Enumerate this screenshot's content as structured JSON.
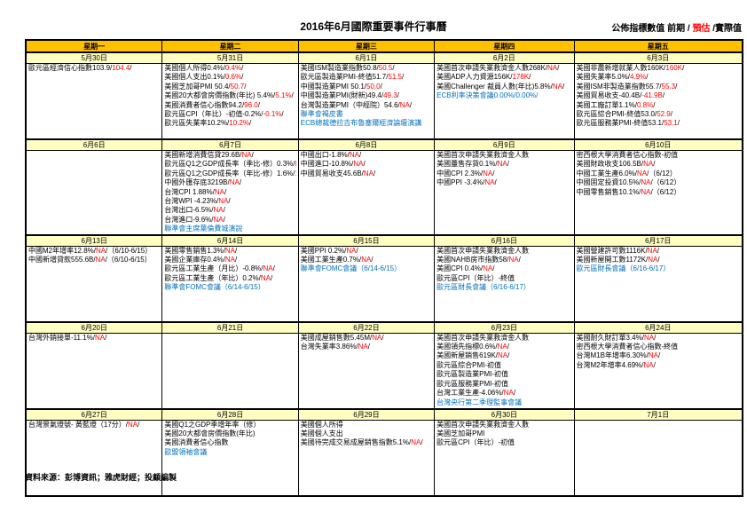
{
  "title": "2016年6月國際重要事件行事曆",
  "legend": {
    "prefix": "公佈指標數值  前期 / ",
    "forecast": "預估",
    "separator": " /",
    "actual": "實際值"
  },
  "colors": {
    "previous_text": "#000000",
    "forecast_text": "#FF0000",
    "event_text": "#0070C0",
    "weekday_header_bg": "#FFC000",
    "date_row_bg": "#FFFFC2"
  },
  "weekday_headers": [
    "星期一",
    "星期二",
    "星期三",
    "星期四",
    "星期五"
  ],
  "weeks": [
    {
      "dates": [
        "5月30日",
        "5月31日",
        "6月1日",
        "6月2日",
        "6月3日"
      ],
      "cells": [
        [
          [
            [
              "歐元區經濟信心指數103.9/",
              "k"
            ],
            [
              "104.4",
              "r"
            ],
            [
              "/",
              "k"
            ]
          ]
        ],
        [
          [
            [
              "美國個人所得0.4%/",
              "k"
            ],
            [
              "0.4%",
              "r"
            ],
            [
              "/",
              "k"
            ]
          ],
          [
            [
              "美國個人支出0.1%/",
              "k"
            ],
            [
              "0.6%",
              "r"
            ],
            [
              "/",
              "k"
            ]
          ],
          [
            [
              "美國芝加哥PMI 50.4/",
              "k"
            ],
            [
              "50.7",
              "r"
            ],
            [
              "/",
              "k"
            ]
          ],
          [
            [
              "美國20大都會房價指數(年比) 5.4%/",
              "k"
            ],
            [
              "5.1%",
              "r"
            ],
            [
              "/",
              "k"
            ]
          ],
          [
            [
              "美國消費者信心指數94.2/",
              "k"
            ],
            [
              "96.0",
              "r"
            ],
            [
              "/",
              "k"
            ]
          ],
          [
            [
              "歐元區CPI（年比）-初值-0.2%/",
              "k"
            ],
            [
              "-0.1%",
              "r"
            ],
            [
              "/",
              "k"
            ]
          ],
          [
            [
              "歐元區失業率10.2%/",
              "k"
            ],
            [
              "10.2%",
              "r"
            ],
            [
              "/",
              "k"
            ]
          ]
        ],
        [
          [
            [
              "美國ISM製造業指數50.8/",
              "k"
            ],
            [
              "50.5",
              "r"
            ],
            [
              "/",
              "k"
            ]
          ],
          [
            [
              "歐元區製造業PMI-終值51.7/",
              "k"
            ],
            [
              "51.5",
              "r"
            ],
            [
              "/",
              "k"
            ]
          ],
          [
            [
              "中國製造業PMI 50.1/",
              "k"
            ],
            [
              "50.0",
              "r"
            ],
            [
              "/",
              "k"
            ]
          ],
          [
            [
              "中國製造業PMI(財新)49.4/",
              "k"
            ],
            [
              "49.3",
              "r"
            ],
            [
              "/",
              "k"
            ]
          ],
          [
            [
              "台灣製造業PMI（中經院）54.6/",
              "k"
            ],
            [
              "NA",
              "r"
            ],
            [
              "/",
              "k"
            ]
          ],
          [
            [
              "聯準會褐皮書",
              "b"
            ]
          ],
          [
            [
              "ECB總裁德拉吉布魯塞爾經濟論壇演講",
              "b"
            ]
          ]
        ],
        [
          [
            [
              "美國首次申請失業救濟金人數268K/",
              "k"
            ],
            [
              "NA",
              "r"
            ],
            [
              "/",
              "k"
            ]
          ],
          [
            [
              "美國ADP人力資源156K/",
              "k"
            ],
            [
              "178K",
              "r"
            ],
            [
              "/",
              "k"
            ]
          ],
          [
            [
              "美國Challenger 裁員人數(年比)5.8%/",
              "k"
            ],
            [
              "NA",
              "r"
            ],
            [
              "/",
              "k"
            ]
          ],
          [
            [
              "ECB利率決策會議0.00%/0.00%/",
              "b"
            ]
          ]
        ],
        [
          [
            [
              "美國非農新增就業人數160K/",
              "k"
            ],
            [
              "160K",
              "r"
            ],
            [
              "/",
              "k"
            ]
          ],
          [
            [
              "美國失業率5.0%/",
              "k"
            ],
            [
              "4.9%",
              "r"
            ],
            [
              "/",
              "k"
            ]
          ],
          [
            [
              "美國ISM非製造業指數55.7/",
              "k"
            ],
            [
              "55.3",
              "r"
            ],
            [
              "/",
              "k"
            ]
          ],
          [
            [
              "美國貿易收支-40.4B/",
              "k"
            ],
            [
              "-41.9B",
              "r"
            ],
            [
              "/",
              "k"
            ]
          ],
          [
            [
              "美國工廠訂單1.1%/",
              "k"
            ],
            [
              "0.8%",
              "r"
            ],
            [
              "/",
              "k"
            ]
          ],
          [
            [
              "歐元區綜合PMI-終值53.0/",
              "k"
            ],
            [
              "52.9",
              "r"
            ],
            [
              "/",
              "k"
            ]
          ],
          [
            [
              "歐元區服務業PMI-終值53.1/",
              "k"
            ],
            [
              "53.1",
              "r"
            ],
            [
              "/",
              "k"
            ]
          ]
        ]
      ]
    },
    {
      "dates": [
        "6月6日",
        "6月7日",
        "6月8日",
        "6月9日",
        "6月10日"
      ],
      "cells": [
        [],
        [
          [
            [
              "美國新增消費信貸29.6B/",
              "k"
            ],
            [
              "NA",
              "r"
            ],
            [
              "/",
              "k"
            ]
          ],
          [
            [
              "歐元區Q1之GDP成長率（季比-修）0.3%/",
              "k"
            ],
            [
              "0.5%",
              "r"
            ],
            [
              "/",
              "k"
            ]
          ],
          [
            [
              "歐元區Q1之GDP成長率（年比-修）1.6%/",
              "k"
            ],
            [
              "1.5%",
              "r"
            ],
            [
              "/",
              "k"
            ]
          ],
          [
            [
              "中國外匯存底3219B/",
              "k"
            ],
            [
              "NA",
              "r"
            ],
            [
              "/",
              "k"
            ]
          ],
          [
            [
              "台灣CPI 1.88%/",
              "k"
            ],
            [
              "NA",
              "r"
            ],
            [
              "/",
              "k"
            ]
          ],
          [
            [
              "台灣WPI -4.23%/",
              "k"
            ],
            [
              "NA",
              "r"
            ],
            [
              "/",
              "k"
            ]
          ],
          [
            [
              "台灣出口-6.5%/",
              "k"
            ],
            [
              "NA",
              "r"
            ],
            [
              "/",
              "k"
            ]
          ],
          [
            [
              "台灣進口-9.6%/",
              "k"
            ],
            [
              "NA",
              "r"
            ],
            [
              "/",
              "k"
            ]
          ],
          [
            [
              "聯準會主席葉倫費城演說",
              "b"
            ]
          ]
        ],
        [
          [
            [
              "中國出口-1.8%/",
              "k"
            ],
            [
              "NA",
              "r"
            ],
            [
              "/",
              "k"
            ]
          ],
          [
            [
              "中國進口-10.8%/",
              "k"
            ],
            [
              "NA",
              "r"
            ],
            [
              "/",
              "k"
            ]
          ],
          [
            [
              "中國貿易收支45.6B/",
              "k"
            ],
            [
              "NA",
              "r"
            ],
            [
              "/",
              "k"
            ]
          ]
        ],
        [
          [
            [
              "美國首次申請失業救濟金人數",
              "k"
            ]
          ],
          [
            [
              "美國躉售存貨0.1%/",
              "k"
            ],
            [
              "NA",
              "r"
            ],
            [
              "/",
              "k"
            ]
          ],
          [
            [
              "中國CPI 2.3%/",
              "k"
            ],
            [
              "NA",
              "r"
            ],
            [
              "/",
              "k"
            ]
          ],
          [
            [
              "中國PPI -3.4%/",
              "k"
            ],
            [
              "NA",
              "r"
            ],
            [
              "/",
              "k"
            ]
          ]
        ],
        [
          [
            [
              "密西根大學消費者信心指數-初值",
              "k"
            ]
          ],
          [
            [
              "美國財政收支106.5B/",
              "k"
            ],
            [
              "NA",
              "r"
            ],
            [
              "/",
              "k"
            ]
          ],
          [
            [
              "中國工業生產6.0%/",
              "k"
            ],
            [
              "NA",
              "r"
            ],
            [
              "/（6/12）",
              "k"
            ]
          ],
          [
            [
              "中國固定投資10.5%/",
              "k"
            ],
            [
              "NA",
              "r"
            ],
            [
              "/（6/12）",
              "k"
            ]
          ],
          [
            [
              "中國零售銷售10.1%/",
              "k"
            ],
            [
              "NA",
              "r"
            ],
            [
              "/（6/12）",
              "k"
            ]
          ]
        ]
      ]
    },
    {
      "dates": [
        "6月13日",
        "6月14日",
        "6月15日",
        "6月16日",
        "6月17日"
      ],
      "cells": [
        [
          [
            [
              "中國M2年增率12.8%/",
              "k"
            ],
            [
              "NA",
              "r"
            ],
            [
              "/（6/10-6/15）",
              "k"
            ]
          ],
          [
            [
              "中國新增貸款555.6B/",
              "k"
            ],
            [
              "NA",
              "r"
            ],
            [
              "/（6/10-6/15）",
              "k"
            ]
          ]
        ],
        [
          [
            [
              "美國零售銷售1.3%/",
              "k"
            ],
            [
              "NA",
              "r"
            ],
            [
              "/",
              "k"
            ]
          ],
          [
            [
              "美國企業庫存0.4%/",
              "k"
            ],
            [
              "NA",
              "r"
            ],
            [
              "/",
              "k"
            ]
          ],
          [
            [
              "歐元區工業生產（月比）-0.8%/",
              "k"
            ],
            [
              "NA",
              "r"
            ],
            [
              "/",
              "k"
            ]
          ],
          [
            [
              "歐元區工業生產（年比）0.2%/",
              "k"
            ],
            [
              "NA",
              "r"
            ],
            [
              "/",
              "k"
            ]
          ],
          [
            [
              "聯準會FOMC會議（6/14-6/15）",
              "b"
            ]
          ]
        ],
        [
          [
            [
              "美國PPI 0.2%/",
              "k"
            ],
            [
              "NA",
              "r"
            ],
            [
              "/",
              "k"
            ]
          ],
          [
            [
              "美國工業生產0.7%/",
              "k"
            ],
            [
              "NA",
              "r"
            ],
            [
              "/",
              "k"
            ]
          ],
          [
            [
              "聯準會FOMC會議（6/14-6/15）",
              "b"
            ]
          ]
        ],
        [
          [
            [
              "美國首次申請失業救濟金人數",
              "k"
            ]
          ],
          [
            [
              "美國NAHB房市指數58/",
              "k"
            ],
            [
              "NA",
              "r"
            ],
            [
              "/",
              "k"
            ]
          ],
          [
            [
              "美國CPI 0.4%/",
              "k"
            ],
            [
              "NA",
              "r"
            ],
            [
              "/",
              "k"
            ]
          ],
          [
            [
              "歐元區CPI（年比）-終值",
              "k"
            ]
          ],
          [
            [
              "歐元區財長會議（6/16-6/17）",
              "b"
            ]
          ]
        ],
        [
          [
            [
              "美國營建許可數1116K/",
              "k"
            ],
            [
              "NA",
              "r"
            ],
            [
              "/",
              "k"
            ]
          ],
          [
            [
              "美國新屋開工數1172K/",
              "k"
            ],
            [
              "NA",
              "r"
            ],
            [
              "/",
              "k"
            ]
          ],
          [
            [
              "歐元區財長會議（6/16-6/17）",
              "b"
            ]
          ]
        ]
      ]
    },
    {
      "dates": [
        "6月20日",
        "6月21日",
        "6月22日",
        "6月23日",
        "6月24日"
      ],
      "cells": [
        [
          [
            [
              "台灣外銷接單-11.1%/",
              "k"
            ],
            [
              "NA",
              "r"
            ],
            [
              "/",
              "k"
            ]
          ]
        ],
        [],
        [
          [
            [
              "美國成屋銷售數5.45M/",
              "k"
            ],
            [
              "NA",
              "r"
            ],
            [
              "/",
              "k"
            ]
          ],
          [
            [
              "台灣失業率3.86%/",
              "k"
            ],
            [
              "NA",
              "r"
            ],
            [
              "/",
              "k"
            ]
          ]
        ],
        [
          [
            [
              "美國首次申請失業救濟金人數",
              "k"
            ]
          ],
          [
            [
              "美國領先指標0.6%/",
              "k"
            ],
            [
              "NA",
              "r"
            ],
            [
              "/",
              "k"
            ]
          ],
          [
            [
              "美國新屋銷售619K/",
              "k"
            ],
            [
              "NA",
              "r"
            ],
            [
              "/",
              "k"
            ]
          ],
          [
            [
              "歐元區綜合PMI-初值",
              "k"
            ]
          ],
          [
            [
              "歐元區製造業PMI-初值",
              "k"
            ]
          ],
          [
            [
              "歐元區服務業PMI-初值",
              "k"
            ]
          ],
          [
            [
              "台灣工業生產-4.06%/",
              "k"
            ],
            [
              "NA",
              "r"
            ],
            [
              "/",
              "k"
            ]
          ],
          [
            [
              "台灣央行第二季理監事會議",
              "b"
            ]
          ]
        ],
        [
          [
            [
              "美國耐久財訂單3.4%/",
              "k"
            ],
            [
              "NA",
              "r"
            ],
            [
              "/",
              "k"
            ]
          ],
          [
            [
              "密西根大學消費者信心指數-終值",
              "k"
            ]
          ],
          [
            [
              "台灣M1B年增率6.30%/",
              "k"
            ],
            [
              "NA",
              "r"
            ],
            [
              "/",
              "k"
            ]
          ],
          [
            [
              "台灣M2年增率4.69%/",
              "k"
            ],
            [
              "NA",
              "r"
            ],
            [
              "/",
              "k"
            ]
          ]
        ]
      ]
    },
    {
      "dates": [
        "6月27日",
        "6月28日",
        "6月29日",
        "6月30日",
        "7月1日"
      ],
      "cells": [
        [
          [
            [
              "台灣景氣燈號- 黃藍燈（17分）/",
              "k"
            ],
            [
              "NA",
              "r"
            ],
            [
              "/",
              "k"
            ]
          ]
        ],
        [
          [
            [
              "美國Q1之GDP季增年率（修）",
              "k"
            ]
          ],
          [
            [
              "美國20大都會房價指數(年比)",
              "k"
            ]
          ],
          [
            [
              "美國消費者信心指數",
              "k"
            ]
          ],
          [
            [
              "歐盟領袖會議",
              "b"
            ]
          ]
        ],
        [
          [
            [
              "美國個人所得",
              "k"
            ]
          ],
          [
            [
              "美國個人支出",
              "k"
            ]
          ],
          [
            [
              "美國待完成交易成屋銷售指數5.1%/",
              "k"
            ],
            [
              "NA",
              "r"
            ],
            [
              "/",
              "k"
            ]
          ]
        ],
        [
          [
            [
              "美國首次申請失業救濟金人數",
              "k"
            ]
          ],
          [
            [
              "美國芝加哥PMI",
              "k"
            ]
          ],
          [
            [
              "歐元區CPI（年比）-初值",
              "k"
            ]
          ]
        ],
        []
      ]
    }
  ],
  "footer": "資料來源：彭博資訊；雅虎財經；投顧編製"
}
